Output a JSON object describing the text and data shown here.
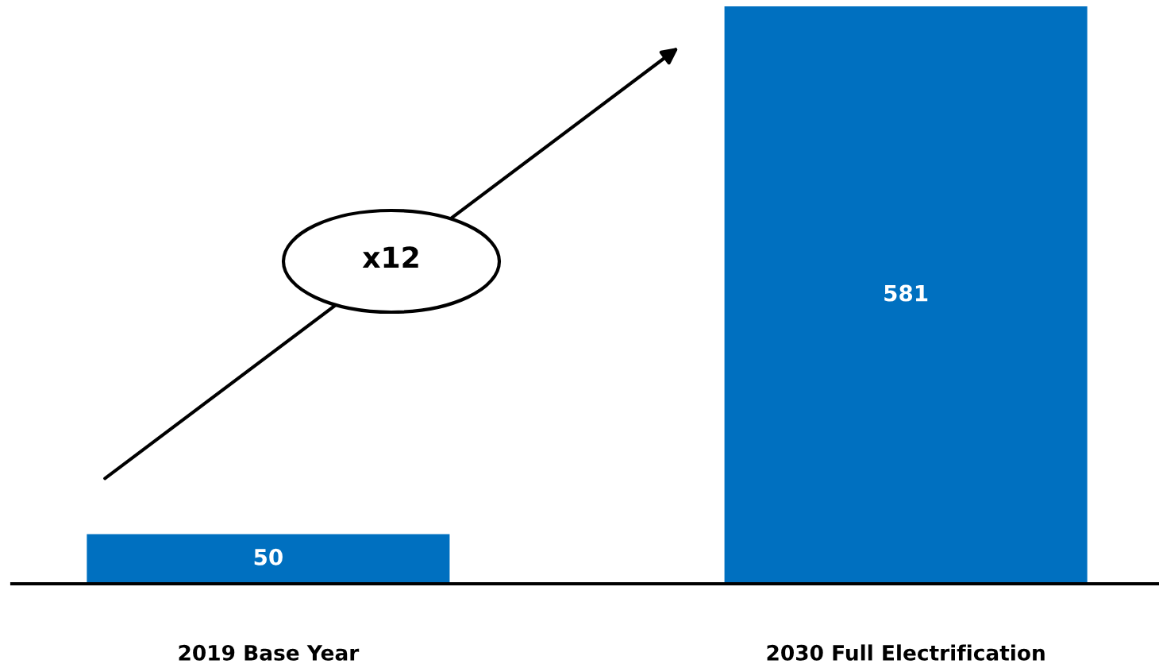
{
  "chart_data": {
    "type": "bar",
    "categories": [
      "2019 Base Year",
      "2030 Full Electrification"
    ],
    "values": [
      50,
      581
    ],
    "color": "#0070c0",
    "data_labels": true,
    "annotations": [
      "x12"
    ],
    "grid": false,
    "legend": false
  }
}
